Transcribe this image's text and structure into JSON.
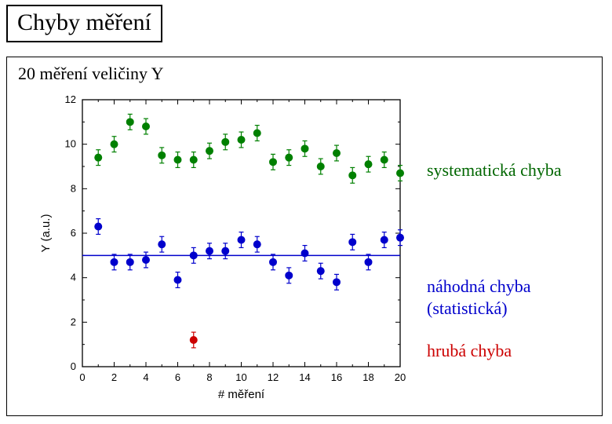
{
  "title": "Chyby měření",
  "subtitle": "20 měření veličiny Y",
  "legend_green": "systematická chyba",
  "legend_blue": "náhodná chyba (statistická)",
  "legend_red": "hrubá chyba",
  "chart": {
    "type": "scatter",
    "xlabel": "# měření",
    "ylabel": "Y (a.u.)",
    "xlim": [
      0,
      20
    ],
    "ylim": [
      0,
      12
    ],
    "xtick_step": 2,
    "ytick_step": 2,
    "xtick_minor_count": 1,
    "ytick_minor_count": 1,
    "label_fontsize": 15,
    "tick_fontsize": 13,
    "background_color": "#ffffff",
    "axis_color": "#000000",
    "axis_linewidth": 1.3,
    "tick_length_major": 6,
    "tick_length_minor": 3,
    "marker_radius": 4.5,
    "errorbar_halfcap": 3,
    "errorbar_linewidth": 1.2,
    "refline": {
      "y": 5.0,
      "color": "#0000cc",
      "linewidth": 1.5
    },
    "series": [
      {
        "name": "systematic",
        "color": "#008000",
        "err": 0.35,
        "points": [
          [
            1,
            9.4
          ],
          [
            2,
            10.0
          ],
          [
            3,
            11.0
          ],
          [
            4,
            10.8
          ],
          [
            5,
            9.5
          ],
          [
            6,
            9.3
          ],
          [
            7,
            9.3
          ],
          [
            8,
            9.7
          ],
          [
            9,
            10.1
          ],
          [
            10,
            10.2
          ],
          [
            11,
            10.5
          ],
          [
            12,
            9.2
          ],
          [
            13,
            9.4
          ],
          [
            14,
            9.8
          ],
          [
            15,
            9.0
          ],
          [
            16,
            9.6
          ],
          [
            17,
            8.6
          ],
          [
            18,
            9.1
          ],
          [
            19,
            9.3
          ],
          [
            20,
            8.7
          ]
        ]
      },
      {
        "name": "random",
        "color": "#0000cc",
        "err": 0.35,
        "points": [
          [
            1,
            6.3
          ],
          [
            2,
            4.7
          ],
          [
            3,
            4.7
          ],
          [
            4,
            4.8
          ],
          [
            5,
            5.5
          ],
          [
            6,
            3.9
          ],
          [
            7,
            5.0
          ],
          [
            8,
            5.2
          ],
          [
            9,
            5.2
          ],
          [
            10,
            5.7
          ],
          [
            11,
            5.5
          ],
          [
            12,
            4.7
          ],
          [
            13,
            4.1
          ],
          [
            14,
            5.1
          ],
          [
            15,
            4.3
          ],
          [
            16,
            3.8
          ],
          [
            17,
            5.6
          ],
          [
            18,
            4.7
          ],
          [
            19,
            5.7
          ],
          [
            20,
            5.8
          ]
        ]
      },
      {
        "name": "outlier",
        "color": "#cc0000",
        "err": 0.35,
        "points": [
          [
            7,
            1.2
          ]
        ]
      }
    ]
  }
}
